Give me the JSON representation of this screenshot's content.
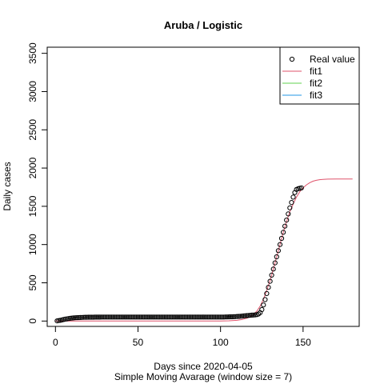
{
  "chart_data": {
    "type": "line",
    "title": "Aruba / Logistic",
    "xlabel": "Days since 2020-04-05",
    "subtitle": "Simple Moving Avarage (window size = 7)",
    "ylabel": "Daily cases",
    "xlim": [
      -5,
      184
    ],
    "ylim": [
      -70,
      3580
    ],
    "xticks": [
      0,
      50,
      100,
      150
    ],
    "yticks": [
      0,
      500,
      1000,
      1500,
      2000,
      2500,
      3000,
      3500
    ],
    "grid": false,
    "legend_position": "top-right",
    "legend": [
      {
        "label": "Real value",
        "kind": "point",
        "color": "#000000"
      },
      {
        "label": "fit1",
        "kind": "line",
        "color": "#DF536B"
      },
      {
        "label": "fit2",
        "kind": "line",
        "color": "#61D04F"
      },
      {
        "label": "fit3",
        "kind": "line",
        "color": "#2297E6"
      }
    ],
    "real_value": {
      "x": [
        1,
        2,
        3,
        4,
        5,
        6,
        7,
        8,
        9,
        10,
        11,
        12,
        13,
        14,
        15,
        16,
        17,
        18,
        19,
        20,
        21,
        22,
        23,
        24,
        25,
        26,
        27,
        28,
        29,
        30,
        31,
        32,
        33,
        34,
        35,
        36,
        37,
        38,
        39,
        40,
        41,
        42,
        43,
        44,
        45,
        46,
        47,
        48,
        49,
        50,
        51,
        52,
        53,
        54,
        55,
        56,
        57,
        58,
        59,
        60,
        61,
        62,
        63,
        64,
        65,
        66,
        67,
        68,
        69,
        70,
        71,
        72,
        73,
        74,
        75,
        76,
        77,
        78,
        79,
        80,
        81,
        82,
        83,
        84,
        85,
        86,
        87,
        88,
        89,
        90,
        91,
        92,
        93,
        94,
        95,
        96,
        97,
        98,
        99,
        100,
        101,
        102,
        103,
        104,
        105,
        106,
        107,
        108,
        109,
        110,
        111,
        112,
        113,
        114,
        115,
        116,
        117,
        118,
        119,
        120,
        121,
        122,
        123,
        124,
        125,
        126,
        127,
        128,
        129,
        130,
        131,
        132,
        133,
        134,
        135,
        136,
        137,
        138,
        139,
        140,
        141,
        142,
        143,
        144,
        145,
        146,
        147,
        148,
        149
      ],
      "y": [
        2,
        6,
        10,
        15,
        20,
        25,
        28,
        33,
        36,
        39,
        41,
        43,
        44,
        45,
        46,
        47,
        48,
        49,
        49,
        50,
        50,
        50,
        50,
        51,
        51,
        51,
        51,
        52,
        52,
        52,
        52,
        52,
        52,
        52,
        52,
        52,
        52,
        52,
        52,
        52,
        52,
        52,
        52,
        52,
        52,
        52,
        52,
        52,
        52,
        52,
        52,
        52,
        52,
        52,
        52,
        52,
        52,
        52,
        52,
        52,
        52,
        52,
        52,
        52,
        52,
        52,
        52,
        52,
        52,
        52,
        52,
        52,
        52,
        52,
        52,
        52,
        52,
        52,
        52,
        52,
        52,
        52,
        52,
        52,
        52,
        52,
        52,
        52,
        52,
        52,
        52,
        52,
        52,
        52,
        52,
        52,
        52,
        52,
        52,
        52,
        52,
        52,
        53,
        53,
        54,
        55,
        56,
        57,
        58,
        60,
        61,
        63,
        65,
        67,
        69,
        71,
        73,
        75,
        77,
        79,
        81,
        84,
        92,
        110,
        150,
        210,
        280,
        360,
        440,
        520,
        600,
        680,
        760,
        840,
        920,
        1000,
        1080,
        1160,
        1240,
        1320,
        1400,
        1480,
        1550,
        1620,
        1680,
        1720,
        1730,
        1735,
        1740
      ]
    },
    "fit1": {
      "x": [
        0,
        10,
        20,
        30,
        40,
        50,
        60,
        70,
        80,
        90,
        100,
        105,
        110,
        113,
        116,
        118,
        120,
        122,
        124,
        126,
        128,
        130,
        132,
        134,
        136,
        138,
        140,
        142,
        144,
        146,
        148,
        150,
        152,
        154,
        156,
        158,
        160,
        162,
        165,
        170,
        175,
        180
      ],
      "y": [
        0,
        0,
        0,
        0,
        0,
        0,
        0,
        0,
        0,
        0,
        1,
        3,
        10,
        20,
        38,
        58,
        88,
        130,
        195,
        285,
        400,
        530,
        680,
        840,
        1000,
        1160,
        1300,
        1430,
        1530,
        1620,
        1690,
        1740,
        1780,
        1808,
        1828,
        1840,
        1848,
        1852,
        1855,
        1857,
        1858,
        1858
      ]
    }
  }
}
